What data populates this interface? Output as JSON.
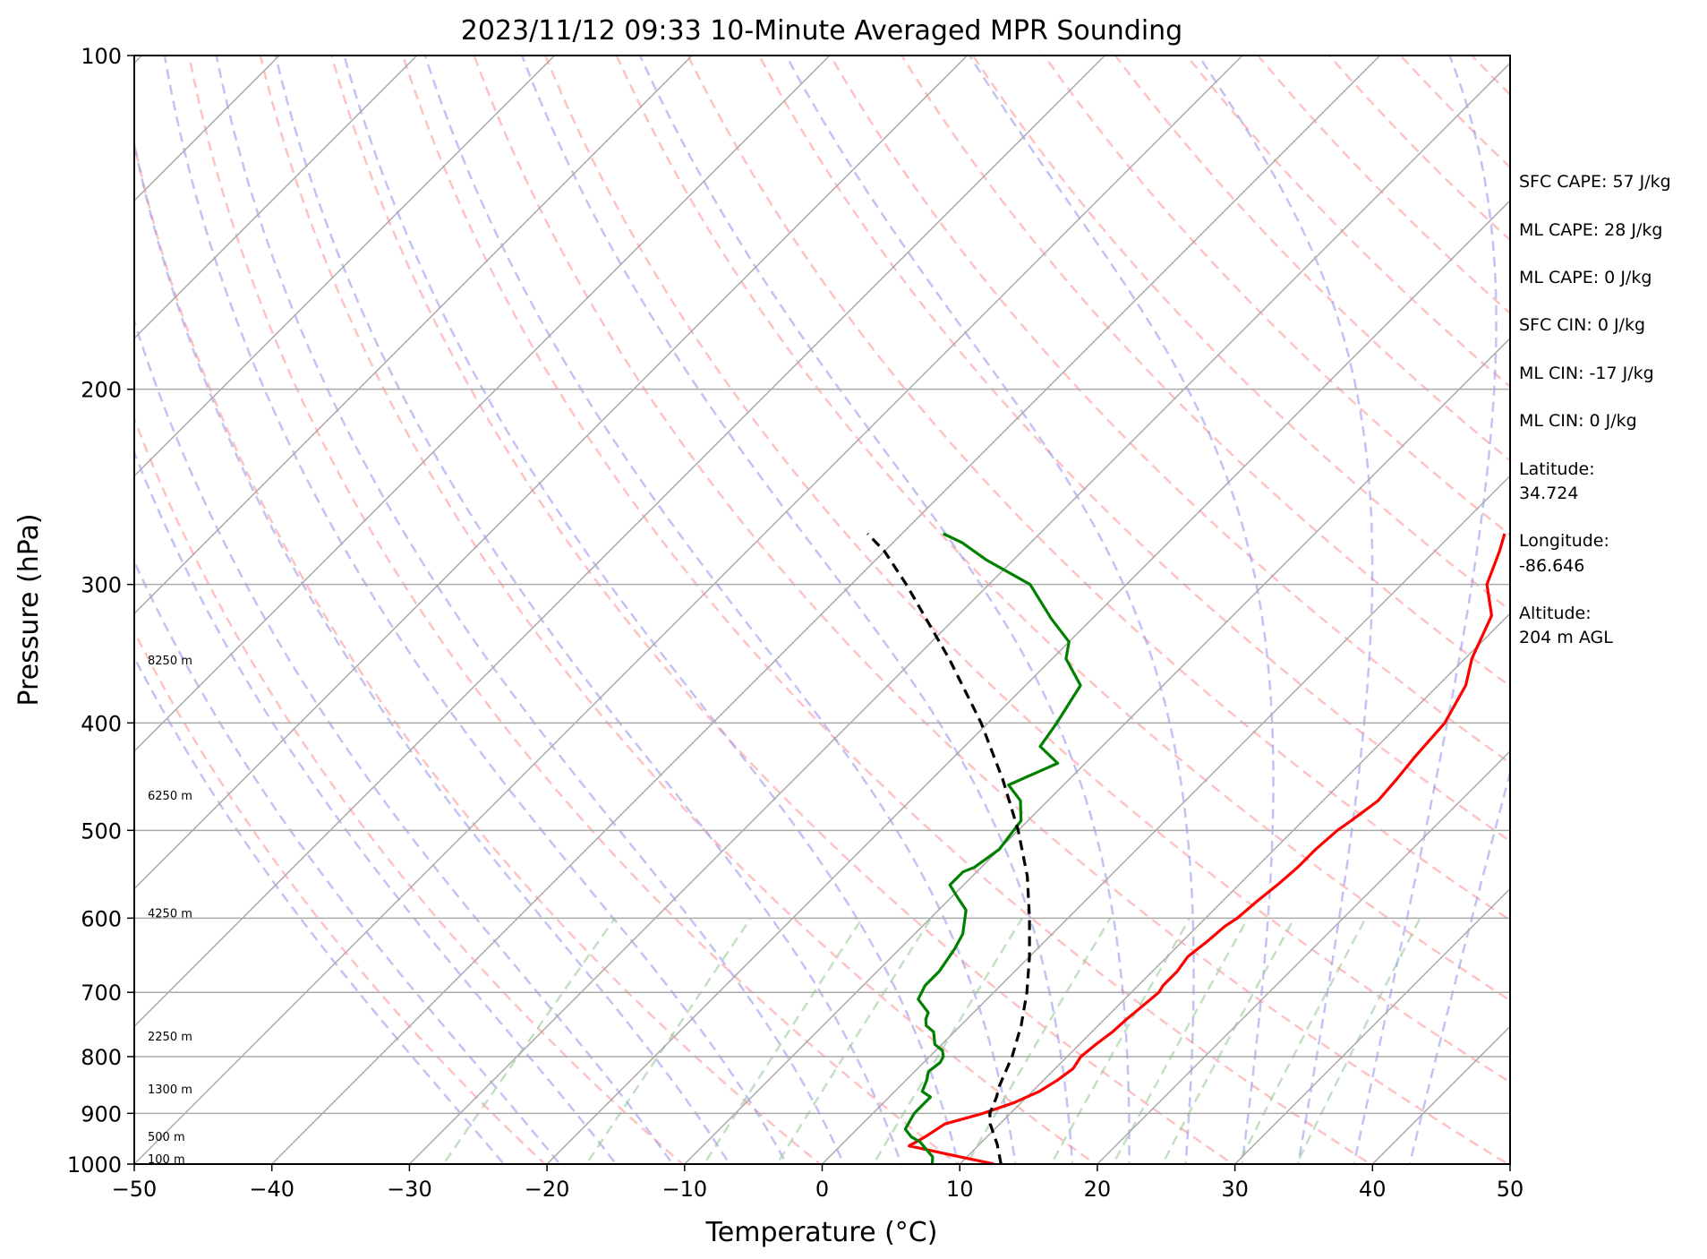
{
  "chart_data": {
    "type": "line",
    "title": "2023/11/12 09:33 10-Minute Averaged MPR Sounding",
    "xlabel": "Temperature (°C)",
    "ylabel": "Pressure (hPa)",
    "xlim": [
      -50,
      50
    ],
    "ylim": [
      1000,
      100
    ],
    "y_scale": "log",
    "skew": "skew-T",
    "grid": true,
    "xticks": [
      "−50",
      "−40",
      "−30",
      "−20",
      "−10",
      "0",
      "10",
      "20",
      "30",
      "40",
      "50"
    ],
    "yticks": [
      "100",
      "200",
      "300",
      "400",
      "500",
      "600",
      "700",
      "800",
      "900",
      "1000"
    ],
    "height_labels": [
      {
        "p": 1000,
        "text": "100 m"
      },
      {
        "p": 955,
        "text": "500 m"
      },
      {
        "p": 865,
        "text": "1300 m"
      },
      {
        "p": 775,
        "text": "2250 m"
      },
      {
        "p": 600,
        "text": "4250 m"
      },
      {
        "p": 470,
        "text": "6250 m"
      },
      {
        "p": 355,
        "text": "8250 m"
      }
    ],
    "series": [
      {
        "color": "#ff0000",
        "p": [
          1000,
          985,
          963,
          945,
          920,
          900,
          880,
          860,
          840,
          820,
          800,
          780,
          760,
          740,
          720,
          700,
          690,
          670,
          650,
          630,
          610,
          600,
          580,
          560,
          540,
          520,
          500,
          490,
          470,
          450,
          430,
          400,
          370,
          350,
          320,
          300,
          280,
          270
        ],
        "t": [
          12.5,
          9.5,
          5.0,
          5.5,
          6.0,
          8.0,
          9.5,
          10.5,
          11.0,
          11.3,
          11.0,
          11.2,
          11.5,
          11.6,
          11.8,
          12.0,
          11.8,
          11.8,
          11.5,
          11.8,
          12.0,
          12.3,
          12.5,
          12.8,
          13.0,
          13.0,
          13.2,
          13.5,
          14.0,
          13.8,
          13.5,
          13.2,
          12.0,
          10.5,
          8.8,
          6.2,
          4.7,
          3.8
        ]
      },
      {
        "color": "#008000",
        "p": [
          1000,
          985,
          970,
          955,
          945,
          930,
          900,
          870,
          860,
          840,
          825,
          810,
          800,
          790,
          780,
          760,
          750,
          740,
          730,
          710,
          690,
          670,
          640,
          620,
          590,
          575,
          560,
          545,
          540,
          520,
          490,
          470,
          455,
          435,
          420,
          400,
          370,
          350,
          338,
          322,
          300,
          285,
          275,
          270
        ],
        "td": [
          8.0,
          7.5,
          6.5,
          5.5,
          4.5,
          3.5,
          3.0,
          3.0,
          2.0,
          1.5,
          1.0,
          1.2,
          1.0,
          0.5,
          -0.5,
          -1.5,
          -2.5,
          -3.0,
          -3.3,
          -5.0,
          -5.5,
          -5.5,
          -6.0,
          -6.5,
          -8.0,
          -9.5,
          -11.0,
          -11.0,
          -10.5,
          -10.0,
          -10.5,
          -12.0,
          -14.0,
          -12.0,
          -14.5,
          -15.0,
          -16.0,
          -19.0,
          -20.0,
          -23.0,
          -27.0,
          -32.0,
          -35.0,
          -37.0
        ]
      },
      {
        "color": "#000000",
        "style": "dashed",
        "p": [
          1000,
          960,
          940,
          920,
          900,
          870,
          850,
          800,
          750,
          700,
          650,
          600,
          550,
          500,
          450,
          400,
          350,
          300,
          280,
          270
        ],
        "t": [
          13.0,
          11.3,
          10.3,
          9.3,
          8.5,
          7.8,
          7.2,
          6.0,
          4.4,
          2.4,
          0.0,
          -2.8,
          -6.0,
          -10.0,
          -14.8,
          -20.5,
          -27.5,
          -36.0,
          -40.0,
          -42.5
        ]
      }
    ]
  },
  "info_panel": {
    "sfc_cape": "SFC CAPE: 57 J/kg",
    "ml_cape_1": "ML CAPE: 28 J/kg",
    "ml_cape_2": "ML CAPE: 0 J/kg",
    "sfc_cin": "SFC CIN: 0 J/kg",
    "ml_cin_1": "ML CIN: -17 J/kg",
    "ml_cin_2": "ML CIN: 0 J/kg",
    "lat_label": "Latitude:",
    "lat_value": "34.724",
    "lon_label": "Longitude:",
    "lon_value": "-86.646",
    "alt_label": "Altitude:",
    "alt_value": "204 m AGL"
  },
  "colors": {
    "dry_adiabat": "#ff9999",
    "moist_adiabat": "#9999ee",
    "mixing_ratio": "#99cc99",
    "isotherm": "#aaaaaa"
  }
}
